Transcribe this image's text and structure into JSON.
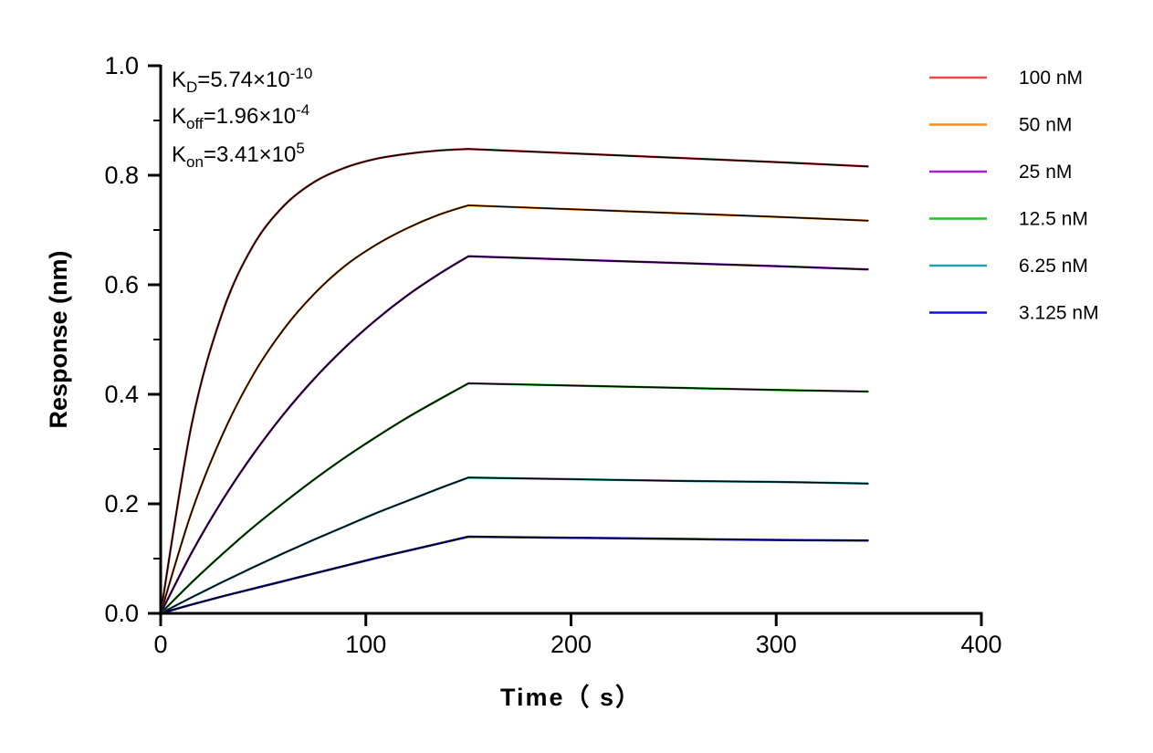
{
  "chart_data": {
    "type": "line",
    "title": "",
    "xlabel": "Time（ s）",
    "ylabel": "Response (nm)",
    "xlim": [
      0,
      400
    ],
    "ylim": [
      0,
      1.0
    ],
    "xticks": [
      "0",
      "100",
      "200",
      "300",
      "400"
    ],
    "yticks": [
      "0.0",
      "0.2",
      "0.4",
      "0.6",
      "0.8",
      "1.0"
    ],
    "grid": false,
    "legend_position": "right",
    "fit_color": "#000000",
    "annotations": {
      "kd": {
        "label": "K",
        "sub": "D",
        "value": "=5.74×10",
        "exp": "-10"
      },
      "koff": {
        "label": "K",
        "sub": "off",
        "value": "=1.96×10",
        "exp": "-4"
      },
      "kon": {
        "label": "K",
        "sub": "on",
        "value": "=3.41×10",
        "exp": "5"
      }
    },
    "x": [
      0,
      15,
      30,
      45,
      60,
      75,
      90,
      105,
      120,
      135,
      150,
      200,
      250,
      300,
      345
    ],
    "series": [
      {
        "name": "100 nM",
        "color": "#e84a4a",
        "values": [
          0,
          0.343,
          0.548,
          0.671,
          0.744,
          0.788,
          0.814,
          0.83,
          0.839,
          0.845,
          0.848,
          0.84,
          0.832,
          0.824,
          0.816
        ]
      },
      {
        "name": "50 nM",
        "color": "#ff8a1e",
        "values": [
          0,
          0.184,
          0.325,
          0.435,
          0.519,
          0.584,
          0.635,
          0.673,
          0.703,
          0.727,
          0.745,
          0.738,
          0.731,
          0.724,
          0.717
        ]
      },
      {
        "name": "25 nM",
        "color": "#a51fd6",
        "values": [
          0,
          0.11,
          0.206,
          0.29,
          0.364,
          0.429,
          0.486,
          0.536,
          0.58,
          0.618,
          0.652,
          0.646,
          0.64,
          0.634,
          0.628
        ]
      },
      {
        "name": "12.5 nM",
        "color": "#1fc21f",
        "values": [
          0,
          0.056,
          0.108,
          0.157,
          0.202,
          0.245,
          0.285,
          0.322,
          0.357,
          0.389,
          0.42,
          0.416,
          0.412,
          0.408,
          0.405
        ]
      },
      {
        "name": "6.25 nM",
        "color": "#1f9fb0",
        "values": [
          0,
          0.029,
          0.057,
          0.084,
          0.11,
          0.135,
          0.159,
          0.183,
          0.205,
          0.227,
          0.248,
          0.245,
          0.242,
          0.24,
          0.237
        ]
      },
      {
        "name": "3.125 nM",
        "color": "#1010e0",
        "values": [
          0,
          0.016,
          0.031,
          0.045,
          0.059,
          0.073,
          0.087,
          0.101,
          0.114,
          0.127,
          0.14,
          0.138,
          0.136,
          0.134,
          0.133
        ]
      }
    ]
  }
}
